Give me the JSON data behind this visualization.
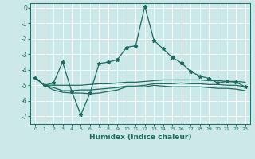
{
  "xlabel": "Humidex (Indice chaleur)",
  "bg_color": "#cce8e8",
  "line_color": "#1a6b60",
  "xlim": [
    -0.5,
    23.5
  ],
  "ylim": [
    -7.5,
    0.3
  ],
  "yticks": [
    0,
    -1,
    -2,
    -3,
    -4,
    -5,
    -6,
    -7
  ],
  "xticks": [
    0,
    1,
    2,
    3,
    4,
    5,
    6,
    7,
    8,
    9,
    10,
    11,
    12,
    13,
    14,
    15,
    16,
    17,
    18,
    19,
    20,
    21,
    22,
    23
  ],
  "series": [
    {
      "x": [
        0,
        1,
        2,
        3,
        4,
        5,
        6,
        7,
        8,
        9,
        10,
        11,
        12,
        13,
        14,
        15,
        16,
        17,
        18,
        19,
        20,
        21,
        22,
        23
      ],
      "y": [
        -4.5,
        -5.0,
        -4.85,
        -3.5,
        -5.4,
        -6.9,
        -5.5,
        -3.6,
        -3.5,
        -3.35,
        -2.55,
        -2.45,
        0.1,
        -2.1,
        -2.65,
        -3.2,
        -3.55,
        -4.1,
        -4.4,
        -4.55,
        -4.85,
        -4.75,
        -4.8,
        -5.1
      ],
      "marker": "*",
      "linestyle": "-",
      "linewidth": 0.9,
      "markersize": 3.5
    },
    {
      "x": [
        0,
        1,
        2,
        3,
        4,
        5,
        6,
        7,
        8,
        9,
        10,
        11,
        12,
        13,
        14,
        15,
        16,
        17,
        18,
        19,
        20,
        21,
        22,
        23
      ],
      "y": [
        -4.5,
        -5.0,
        -5.0,
        -5.0,
        -5.0,
        -5.0,
        -4.95,
        -4.9,
        -4.9,
        -4.85,
        -4.8,
        -4.8,
        -4.75,
        -4.7,
        -4.65,
        -4.65,
        -4.65,
        -4.65,
        -4.65,
        -4.7,
        -4.7,
        -4.75,
        -4.75,
        -4.8
      ],
      "marker": null,
      "linestyle": "-",
      "linewidth": 0.9,
      "markersize": 0
    },
    {
      "x": [
        0,
        1,
        2,
        3,
        4,
        5,
        6,
        7,
        8,
        9,
        10,
        11,
        12,
        13,
        14,
        15,
        16,
        17,
        18,
        19,
        20,
        21,
        22,
        23
      ],
      "y": [
        -4.5,
        -5.0,
        -5.15,
        -5.35,
        -5.35,
        -5.3,
        -5.3,
        -5.25,
        -5.2,
        -5.15,
        -5.05,
        -5.05,
        -5.0,
        -4.9,
        -4.9,
        -4.9,
        -4.85,
        -4.9,
        -4.9,
        -4.95,
        -4.95,
        -5.0,
        -5.0,
        -5.1
      ],
      "marker": null,
      "linestyle": "-",
      "linewidth": 0.9,
      "markersize": 0
    },
    {
      "x": [
        0,
        1,
        2,
        3,
        4,
        5,
        6,
        7,
        8,
        9,
        10,
        11,
        12,
        13,
        14,
        15,
        16,
        17,
        18,
        19,
        20,
        21,
        22,
        23
      ],
      "y": [
        -4.5,
        -5.0,
        -5.3,
        -5.45,
        -5.5,
        -5.5,
        -5.55,
        -5.5,
        -5.4,
        -5.3,
        -5.1,
        -5.1,
        -5.1,
        -5.0,
        -5.05,
        -5.1,
        -5.1,
        -5.1,
        -5.1,
        -5.15,
        -5.2,
        -5.2,
        -5.25,
        -5.35
      ],
      "marker": null,
      "linestyle": "-",
      "linewidth": 0.9,
      "markersize": 0
    }
  ]
}
